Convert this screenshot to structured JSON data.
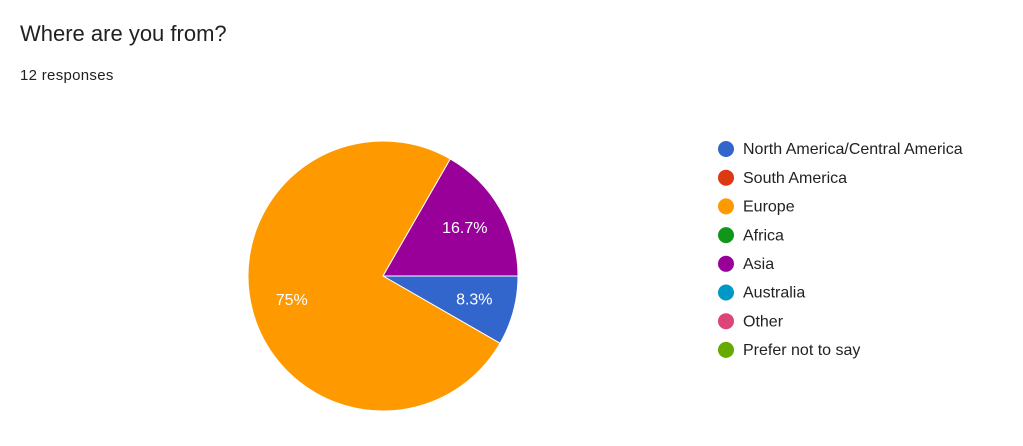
{
  "chart_data": {
    "type": "pie",
    "title": "Where are you from?",
    "subtitle": "12 responses",
    "categories": [
      "North America/Central America",
      "South America",
      "Europe",
      "Africa",
      "Asia",
      "Australia",
      "Other",
      "Prefer not to say"
    ],
    "values": [
      8.3,
      0,
      75,
      0,
      16.7,
      0,
      0,
      0
    ],
    "value_labels": [
      "8.3%",
      null,
      "75%",
      null,
      "16.7%",
      null,
      null,
      null
    ],
    "colors": [
      "#3366cc",
      "#dc3912",
      "#ff9900",
      "#109618",
      "#990099",
      "#0099c6",
      "#dd4477",
      "#66aa00"
    ],
    "legend": "right"
  }
}
